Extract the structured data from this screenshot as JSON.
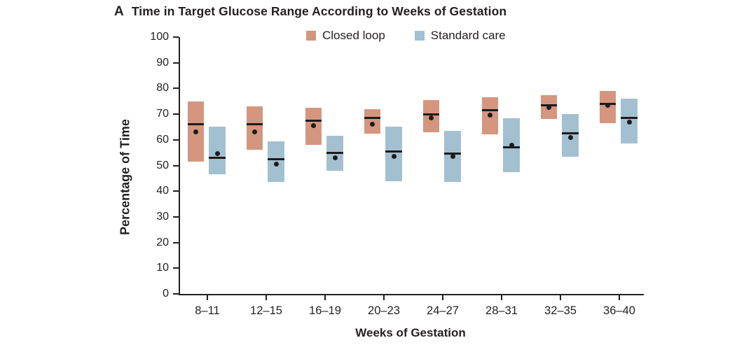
{
  "panel_label": "A",
  "title": "Time in Target Glucose Range According to Weeks of Gestation",
  "axes": {
    "ylabel": "Percentage of Time",
    "xlabel": "Weeks of Gestation"
  },
  "legend": {
    "items": [
      {
        "label": "Closed loop",
        "color": "#D4967F"
      },
      {
        "label": "Standard care",
        "color": "#A3C0D1"
      }
    ]
  },
  "colors": {
    "axis": "#231F20",
    "text": "#231F20",
    "marker": "#1C1C1C",
    "background": "#FFFFFF"
  },
  "chart_data": {
    "type": "box",
    "title": "Time in Target Glucose Range According to Weeks of Gestation",
    "xlabel": "Weeks of Gestation",
    "ylabel": "Percentage of Time",
    "ylim": [
      0,
      100
    ],
    "y_tick_step": 10,
    "grid": false,
    "legend_position": "top",
    "categories": [
      "8–11",
      "12–15",
      "16–19",
      "20–23",
      "24–27",
      "28–31",
      "32–35",
      "36–40"
    ],
    "series": [
      {
        "name": "Closed loop",
        "color": "#D4967F",
        "boxes": [
          {
            "low": 51.5,
            "median": 66,
            "mean": 63,
            "high": 75
          },
          {
            "low": 56,
            "median": 66,
            "mean": 63,
            "high": 73
          },
          {
            "low": 58,
            "median": 67.5,
            "mean": 65.5,
            "high": 72.5
          },
          {
            "low": 62.5,
            "median": 68.5,
            "mean": 66,
            "high": 72
          },
          {
            "low": 63,
            "median": 70,
            "mean": 68.5,
            "high": 75.5
          },
          {
            "low": 62,
            "median": 71.5,
            "mean": 69.5,
            "high": 76.5
          },
          {
            "low": 68,
            "median": 73.5,
            "mean": 72.5,
            "high": 77.5
          },
          {
            "low": 66.5,
            "median": 74,
            "mean": 73.5,
            "high": 79
          }
        ]
      },
      {
        "name": "Standard care",
        "color": "#A3C0D1",
        "boxes": [
          {
            "low": 46.5,
            "median": 53,
            "mean": 54.5,
            "high": 65
          },
          {
            "low": 43.5,
            "median": 52.5,
            "mean": 50.5,
            "high": 59.5
          },
          {
            "low": 48,
            "median": 55,
            "mean": 53,
            "high": 61.5
          },
          {
            "low": 44,
            "median": 55.5,
            "mean": 53.5,
            "high": 65
          },
          {
            "low": 43.5,
            "median": 54.5,
            "mean": 53.5,
            "high": 63.5
          },
          {
            "low": 47.5,
            "median": 57,
            "mean": 58,
            "high": 68.5
          },
          {
            "low": 53.5,
            "median": 62.5,
            "mean": 61,
            "high": 70
          },
          {
            "low": 58.5,
            "median": 68.5,
            "mean": 67,
            "high": 76
          }
        ]
      }
    ]
  }
}
